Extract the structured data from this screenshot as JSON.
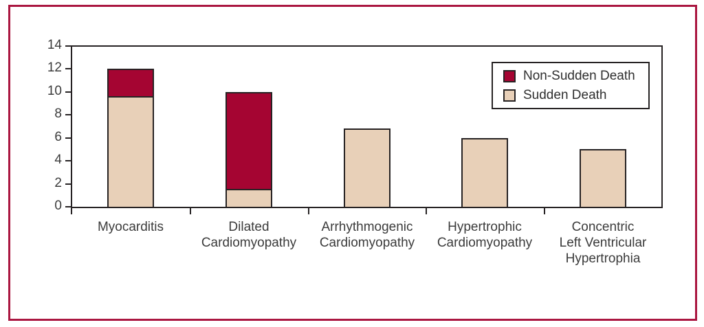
{
  "figure": {
    "frame_color": "#aa1640",
    "background": "#ffffff",
    "axis_color": "#262223",
    "text_color": "#3b3b3b"
  },
  "chart_data": {
    "type": "bar",
    "stacked": true,
    "title": "",
    "xlabel": "",
    "ylabel": "",
    "categories": [
      "Myocarditis",
      "Dilated\nCardiomyopathy",
      "Arrhythmogenic\nCardiomyopathy",
      "Hypertrophic\nCardiomyopathy",
      "Concentric\nLeft Ventricular\nHypertrophia"
    ],
    "series": [
      {
        "name": "Sudden Death",
        "color": "#e8d0b8",
        "values": [
          9.7,
          1.7,
          6.8,
          6,
          5
        ]
      },
      {
        "name": "Non-Sudden Death",
        "color": "#a50532",
        "values": [
          2.3,
          8.3,
          0,
          0,
          0
        ]
      }
    ],
    "stack_totals": [
      12,
      10,
      6.8,
      6,
      5
    ],
    "ylim": [
      0,
      14
    ],
    "yticks": [
      0,
      2,
      4,
      6,
      8,
      10,
      12,
      14
    ],
    "grid": false,
    "legend": {
      "position": "top-right",
      "entries": [
        {
          "label": "Non-Sudden Death",
          "color": "#a50532"
        },
        {
          "label": "Sudden Death",
          "color": "#e8d0b8"
        }
      ]
    }
  }
}
